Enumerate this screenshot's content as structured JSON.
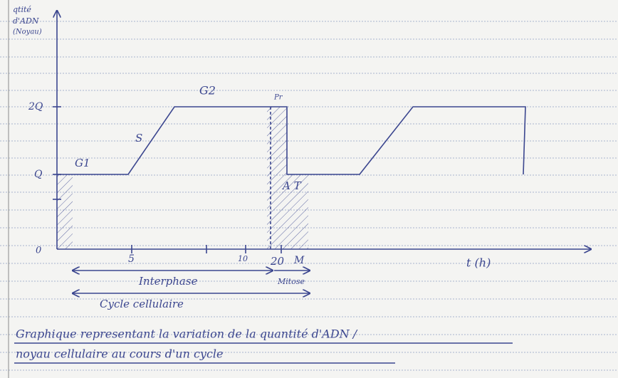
{
  "figure": {
    "y_axis_label": [
      "qtité",
      "d'ADN",
      "(Noyau)"
    ],
    "y_ticks": [
      "2Q",
      "Q",
      "0"
    ],
    "x_ticks": [
      "5",
      "10",
      "20",
      "M"
    ],
    "x_axis_label": "t (h)",
    "phases": [
      "G1",
      "S",
      "G2",
      "Pr",
      "A T"
    ],
    "spans": [
      "Interphase",
      "Mitose",
      "Cycle cellulaire"
    ]
  },
  "caption": [
    "Graphique representant la variation de la quantité d'ADN /",
    "noyau cellulaire au cours d'un cycle"
  ]
}
